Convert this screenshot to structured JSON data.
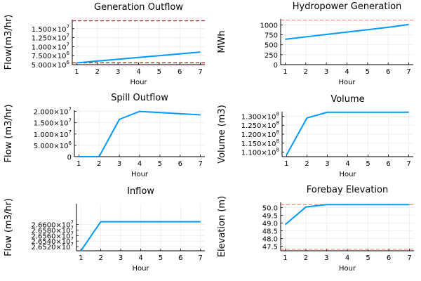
{
  "colors": {
    "series": "#009af9",
    "bound": "#e26f46",
    "bound_dark": "#c02020",
    "grid": "#e6e6e6"
  },
  "chart_data": [
    {
      "type": "line",
      "title": "Generation Outflow",
      "xlabel": "Hour",
      "ylabel": "Flow(m3/hr)",
      "x": [
        1,
        2,
        3,
        4,
        5,
        6,
        7
      ],
      "ylim": [
        5000000,
        17500000
      ],
      "yticks": [
        {
          "value": 5000000,
          "mant": "5.000×10",
          "exp": "6"
        },
        {
          "value": 7500000,
          "mant": "7.500×10",
          "exp": "6"
        },
        {
          "value": 10000000,
          "mant": "1.000×10",
          "exp": "7"
        },
        {
          "value": 12500000,
          "mant": "1.250×10",
          "exp": "7"
        },
        {
          "value": 15000000,
          "mant": "1.500×10",
          "exp": "7"
        }
      ],
      "series": [
        {
          "values": [
            5500000,
            6000000,
            6500000,
            7000000,
            7500000,
            8000000,
            8500000
          ]
        }
      ],
      "bounds": [
        {
          "value": 5500000,
          "style": "dark"
        },
        {
          "value": 17200000,
          "style": "dark"
        }
      ],
      "grid": true
    },
    {
      "type": "line",
      "title": "Hydropower Generation",
      "xlabel": "Hour",
      "ylabel": "MWh",
      "x": [
        1,
        2,
        3,
        4,
        5,
        6,
        7
      ],
      "ylim": [
        0,
        1150
      ],
      "yticks": [
        {
          "value": 0,
          "label": "0"
        },
        {
          "value": 250,
          "label": "250"
        },
        {
          "value": 500,
          "label": "500"
        },
        {
          "value": 750,
          "label": "750"
        },
        {
          "value": 1000,
          "label": "1000"
        }
      ],
      "series": [
        {
          "values": [
            640,
            700,
            760,
            820,
            880,
            940,
            1010
          ]
        }
      ],
      "bounds": [
        {
          "value": 1120,
          "style": "light"
        }
      ],
      "grid": true
    },
    {
      "type": "line",
      "title": "Spill Outflow",
      "xlabel": "Hour",
      "ylabel": "Flow (m3/hr)",
      "x": [
        1,
        2,
        3,
        4,
        5,
        6,
        7
      ],
      "ylim": [
        0,
        20500000
      ],
      "yticks": [
        {
          "value": 0,
          "label": "0"
        },
        {
          "value": 5000000,
          "mant": "5.000×10",
          "exp": "6"
        },
        {
          "value": 10000000,
          "mant": "1.000×10",
          "exp": "7"
        },
        {
          "value": 15000000,
          "mant": "1.500×10",
          "exp": "7"
        },
        {
          "value": 20000000,
          "mant": "2.000×10",
          "exp": "7"
        }
      ],
      "series": [
        {
          "values": [
            0,
            0,
            16500000,
            20000000,
            19500000,
            19000000,
            18500000
          ]
        }
      ],
      "bounds": [],
      "grid": true
    },
    {
      "type": "line",
      "title": "Volume",
      "xlabel": "Hour",
      "ylabel": "Volume (m3)",
      "x": [
        1,
        2,
        3,
        4,
        5,
        6,
        7
      ],
      "ylim": [
        107500000,
        132500000
      ],
      "yticks": [
        {
          "value": 110000000,
          "mant": "1.100×10",
          "exp": "8"
        },
        {
          "value": 115000000,
          "mant": "1.150×10",
          "exp": "8"
        },
        {
          "value": 120000000,
          "mant": "1.200×10",
          "exp": "8"
        },
        {
          "value": 125000000,
          "mant": "1.250×10",
          "exp": "8"
        },
        {
          "value": 130000000,
          "mant": "1.300×10",
          "exp": "8"
        }
      ],
      "series": [
        {
          "values": [
            108500000,
            129000000,
            132200000,
            132200000,
            132200000,
            132200000,
            132200000
          ]
        }
      ],
      "bounds": [],
      "grid": true
    },
    {
      "type": "line",
      "title": "Inflow",
      "xlabel": "Hour",
      "ylabel": "Flow (m3/hr)",
      "x": [
        1,
        2,
        3,
        4,
        5,
        6,
        7
      ],
      "ylim": [
        26505000,
        26675000
      ],
      "yticks": [
        {
          "value": 26520000,
          "mant": "2.6520×10",
          "exp": "7"
        },
        {
          "value": 26540000,
          "mant": "2.6540×10",
          "exp": "7"
        },
        {
          "value": 26560000,
          "mant": "2.6560×10",
          "exp": "7"
        },
        {
          "value": 26580000,
          "mant": "2.6580×10",
          "exp": "7"
        },
        {
          "value": 26600000,
          "mant": "2.6600×10",
          "exp": "7"
        }
      ],
      "series": [
        {
          "values": [
            26505000,
            26610000,
            26610000,
            26610000,
            26610000,
            26610000,
            26610000
          ]
        }
      ],
      "bounds": [],
      "grid": true
    },
    {
      "type": "line",
      "title": "Forebay Elevation",
      "xlabel": "Hour",
      "ylabel": "Elevation (m)",
      "x": [
        1,
        2,
        3,
        4,
        5,
        6,
        7
      ],
      "ylim": [
        47.2,
        50.35
      ],
      "yticks": [
        {
          "value": 47.5,
          "label": "47.5"
        },
        {
          "value": 48.0,
          "label": "48.0"
        },
        {
          "value": 48.5,
          "label": "48.5"
        },
        {
          "value": 49.0,
          "label": "49.0"
        },
        {
          "value": 49.5,
          "label": "49.5"
        },
        {
          "value": 50.0,
          "label": "50.0"
        }
      ],
      "series": [
        {
          "values": [
            48.9,
            50.05,
            50.2,
            50.2,
            50.2,
            50.2,
            50.2
          ]
        }
      ],
      "bounds": [
        {
          "value": 50.2,
          "style": "light"
        },
        {
          "value": 47.3,
          "style": "light"
        }
      ],
      "grid": true
    }
  ]
}
